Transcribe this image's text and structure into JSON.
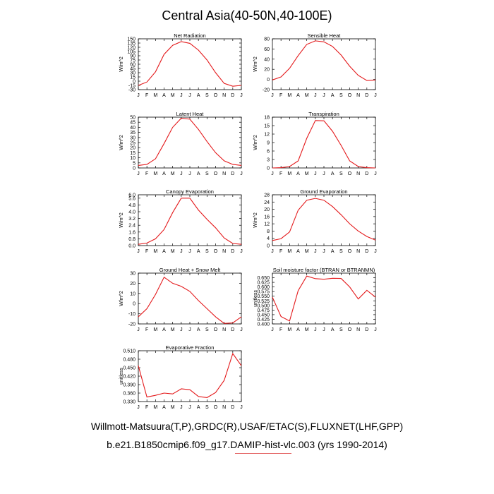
{
  "figure": {
    "title": "Central Asia(40-50N,40-100E)",
    "caption_line1": "Willmott-Matsuura(T,P),GRDC(R),USAF/ETAC(S),FLUXNET(LHF,GPP)",
    "caption_line2": "b.e21.B1850cmip6.f09_g17.DAMIP-hist-vlc.003 (yrs 1990-2014)",
    "line_color": "#e41a1c"
  },
  "chart_data": [
    {
      "type": "line",
      "title": "Net Radiation",
      "ylabel": "W/m^2",
      "x": [
        "J",
        "F",
        "M",
        "A",
        "M",
        "J",
        "J",
        "A",
        "S",
        "O",
        "N",
        "D",
        "J"
      ],
      "ylim": [
        -30,
        150
      ],
      "yticks": [
        -30,
        -15,
        0,
        15,
        30,
        45,
        60,
        75,
        90,
        105,
        120,
        135,
        150
      ],
      "values": [
        -15,
        -3,
        33,
        95,
        127,
        140,
        134,
        110,
        75,
        30,
        -8,
        -18,
        -15
      ]
    },
    {
      "type": "line",
      "title": "Sensible Heat",
      "ylabel": "W/m^2",
      "x": [
        "J",
        "F",
        "M",
        "A",
        "M",
        "J",
        "J",
        "A",
        "S",
        "O",
        "N",
        "D",
        "J"
      ],
      "ylim": [
        -20,
        80
      ],
      "yticks": [
        -20,
        0,
        20,
        40,
        60,
        80
      ],
      "values": [
        -1,
        5,
        22,
        47,
        69,
        76,
        74,
        65,
        48,
        26,
        8,
        -2,
        -1
      ]
    },
    {
      "type": "line",
      "title": "Latent Heat",
      "ylabel": "W/m^2",
      "x": [
        "J",
        "F",
        "M",
        "A",
        "M",
        "J",
        "J",
        "A",
        "S",
        "O",
        "N",
        "D",
        "J"
      ],
      "ylim": [
        0,
        50
      ],
      "yticks": [
        0,
        5,
        10,
        15,
        20,
        25,
        30,
        35,
        40,
        45,
        50
      ],
      "values": [
        2.5,
        3.5,
        9,
        24,
        40,
        49,
        48,
        38,
        26,
        15,
        7,
        3.5,
        2.5
      ]
    },
    {
      "type": "line",
      "title": "Transpiration",
      "ylabel": "W/m^2",
      "x": [
        "J",
        "F",
        "M",
        "A",
        "M",
        "J",
        "J",
        "A",
        "S",
        "O",
        "N",
        "D",
        "J"
      ],
      "ylim": [
        0,
        18
      ],
      "yticks": [
        0,
        3,
        6,
        9,
        12,
        15,
        18
      ],
      "values": [
        0,
        0.1,
        0.5,
        2.5,
        10.5,
        16.8,
        16.7,
        13,
        8,
        2.5,
        0.5,
        0.1,
        0
      ]
    },
    {
      "type": "line",
      "title": "Canopy Evaporation",
      "ylabel": "W/m^2",
      "x": [
        "J",
        "F",
        "M",
        "A",
        "M",
        "J",
        "J",
        "A",
        "S",
        "O",
        "N",
        "D",
        "J"
      ],
      "ylim": [
        0,
        6
      ],
      "yticks": [
        0,
        0.8,
        1.6,
        2.4,
        3.2,
        4.0,
        4.8,
        5.6
      ],
      "ytick_labels": [
        "0.0",
        "0.8",
        "1.6",
        "2.4",
        "3.2",
        "4.0",
        "4.8",
        "5.6"
      ],
      "extra_top_label": "6.0",
      "values": [
        0.15,
        0.3,
        0.8,
        1.9,
        3.9,
        5.6,
        5.6,
        4.2,
        3.1,
        2.1,
        0.9,
        0.25,
        0.15
      ]
    },
    {
      "type": "line",
      "title": "Ground Evaporation",
      "ylabel": "W/m^2",
      "x": [
        "J",
        "F",
        "M",
        "A",
        "M",
        "J",
        "J",
        "A",
        "S",
        "O",
        "N",
        "D",
        "J"
      ],
      "ylim": [
        0,
        28
      ],
      "yticks": [
        0,
        4,
        8,
        12,
        16,
        20,
        24,
        28
      ],
      "values": [
        2.8,
        3.8,
        7.5,
        19.5,
        25,
        26,
        25,
        21.5,
        17,
        12,
        8,
        5,
        3
      ]
    },
    {
      "type": "line",
      "title": "Ground Heat + Snow Melt",
      "ylabel": "W/m^2",
      "x": [
        "J",
        "F",
        "M",
        "A",
        "M",
        "J",
        "J",
        "A",
        "S",
        "O",
        "N",
        "D",
        "J"
      ],
      "ylim": [
        -20,
        30
      ],
      "yticks": [
        -20,
        -10,
        0,
        10,
        20,
        30
      ],
      "values": [
        -13,
        -5,
        9,
        26,
        20,
        17,
        12,
        3,
        -5,
        -13,
        -19.5,
        -19,
        -13
      ]
    },
    {
      "type": "line",
      "title": "Soil moisture factor (BTRAN or BTRANMN)",
      "ylabel": "unitless",
      "x": [
        "J",
        "F",
        "M",
        "A",
        "M",
        "J",
        "J",
        "A",
        "S",
        "O",
        "N",
        "D",
        "J"
      ],
      "ylim": [
        0.4,
        0.675
      ],
      "yticks": [
        0.4,
        0.425,
        0.45,
        0.475,
        0.5,
        0.525,
        0.55,
        0.575,
        0.6,
        0.625,
        0.65
      ],
      "ytick_labels": [
        "0.400",
        "0.425",
        "0.450",
        "0.475",
        "0.500",
        "0.525",
        "0.550",
        "0.575",
        "0.600",
        "0.625",
        "0.650"
      ],
      "values": [
        0.545,
        0.44,
        0.416,
        0.58,
        0.659,
        0.645,
        0.642,
        0.647,
        0.646,
        0.6,
        0.535,
        0.582,
        0.545
      ]
    },
    {
      "type": "line",
      "title": "Evaporative Fraction",
      "ylabel": "unitless",
      "x": [
        "J",
        "F",
        "M",
        "A",
        "M",
        "J",
        "J",
        "A",
        "S",
        "O",
        "N",
        "D",
        "J"
      ],
      "ylim": [
        0.33,
        0.51
      ],
      "yticks": [
        0.33,
        0.36,
        0.39,
        0.42,
        0.45,
        0.48,
        0.51
      ],
      "ytick_labels": [
        "0.330",
        "0.360",
        "0.390",
        "0.420",
        "0.450",
        "0.480",
        "0.510"
      ],
      "values": [
        0.457,
        0.346,
        0.352,
        0.36,
        0.357,
        0.375,
        0.372,
        0.348,
        0.344,
        0.362,
        0.405,
        0.5,
        0.457
      ]
    }
  ]
}
